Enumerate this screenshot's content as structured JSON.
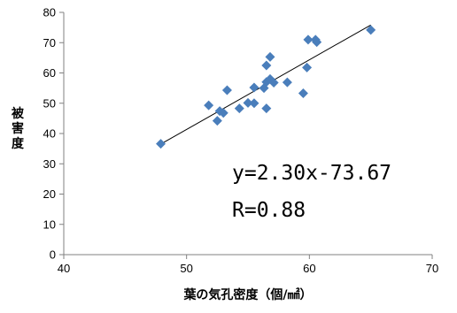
{
  "chart_data": {
    "type": "scatter",
    "title": "",
    "xlabel": "葉の気孔密度（個/㎟）",
    "ylabel": "被害度",
    "xlim": [
      40,
      70
    ],
    "ylim": [
      0,
      80
    ],
    "x_ticks": [
      "40",
      "50",
      "60",
      "70"
    ],
    "y_ticks": [
      "0",
      "10",
      "20",
      "30",
      "40",
      "50",
      "60",
      "70",
      "80"
    ],
    "grid": false,
    "legend": "none",
    "marker": "diamond",
    "marker_color": "#4a7ebb",
    "points": [
      {
        "x": 47.9,
        "y": 36.6
      },
      {
        "x": 51.8,
        "y": 49.3
      },
      {
        "x": 52.5,
        "y": 44.2
      },
      {
        "x": 52.7,
        "y": 47.4
      },
      {
        "x": 53.0,
        "y": 46.8
      },
      {
        "x": 53.3,
        "y": 54.3
      },
      {
        "x": 54.3,
        "y": 48.3
      },
      {
        "x": 55.0,
        "y": 50.1
      },
      {
        "x": 55.5,
        "y": 50.0
      },
      {
        "x": 55.5,
        "y": 55.2
      },
      {
        "x": 56.3,
        "y": 55.0
      },
      {
        "x": 56.5,
        "y": 48.3
      },
      {
        "x": 56.5,
        "y": 57.0
      },
      {
        "x": 56.5,
        "y": 62.5
      },
      {
        "x": 56.8,
        "y": 58.0
      },
      {
        "x": 56.8,
        "y": 65.3
      },
      {
        "x": 57.1,
        "y": 56.8
      },
      {
        "x": 58.2,
        "y": 56.9
      },
      {
        "x": 59.5,
        "y": 53.3
      },
      {
        "x": 59.8,
        "y": 61.8
      },
      {
        "x": 59.9,
        "y": 71.0
      },
      {
        "x": 60.5,
        "y": 71.0
      },
      {
        "x": 60.6,
        "y": 70.2
      },
      {
        "x": 65.0,
        "y": 74.2
      }
    ],
    "trendline": {
      "x_start": 47.9,
      "x_end": 65.0,
      "slope": 2.3,
      "intercept": -73.67,
      "color": "#000000"
    },
    "annotations": {
      "equation": "y=2.30x-73.67",
      "r_value": "R=0.88"
    }
  }
}
